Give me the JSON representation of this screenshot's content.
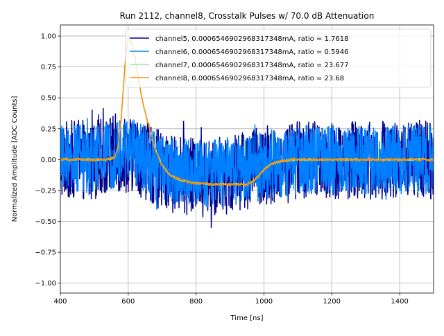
{
  "chart_data": {
    "type": "line",
    "title": "Run 2112, channel8, Crosstalk Pulses w/ 70.0 dB Attenuation",
    "xlabel": "Time [ns]",
    "ylabel": "Normalized Amplitude [ADC Counts]",
    "xlim": [
      400,
      1500
    ],
    "ylim": [
      -1.08,
      1.09
    ],
    "xticks": [
      400,
      600,
      800,
      1000,
      1200,
      1400
    ],
    "xtick_labels": [
      "400",
      "600",
      "800",
      "1000",
      "1200",
      "1400"
    ],
    "yticks": [
      -1.0,
      -0.75,
      -0.5,
      -0.25,
      0.0,
      0.25,
      0.5,
      0.75,
      1.0
    ],
    "ytick_labels": [
      "−1.00",
      "−0.75",
      "−0.50",
      "−0.25",
      "0.00",
      "0.25",
      "0.50",
      "0.75",
      "1.00"
    ],
    "grid": true,
    "legend_position": "top-right",
    "series": [
      {
        "name": "channel5, 0.0006546902968317348mA, ratio = 1.7618",
        "color": "#00008b",
        "kind": "noise",
        "noise_amplitude": 0.32,
        "x": [
          400,
          500,
          560,
          600,
          650,
          700,
          800,
          900,
          1000,
          1100,
          1200,
          1300,
          1400,
          1500
        ],
        "values": [
          0.0,
          0.0,
          0.05,
          0.05,
          0.0,
          -0.1,
          -0.15,
          -0.12,
          -0.05,
          0.0,
          0.0,
          0.0,
          0.0,
          0.0
        ]
      },
      {
        "name": "channel6, 0.0006546902968317348mA, ratio = 0.5946",
        "color": "#0080ff",
        "kind": "noise",
        "noise_amplitude": 0.28,
        "x": [
          400,
          500,
          560,
          600,
          650,
          700,
          800,
          900,
          1000,
          1100,
          1200,
          1300,
          1400,
          1500
        ],
        "values": [
          0.0,
          0.0,
          0.05,
          0.08,
          0.02,
          -0.08,
          -0.12,
          -0.1,
          -0.05,
          0.0,
          0.0,
          0.0,
          0.0,
          0.0
        ]
      },
      {
        "name": "channel7, 0.0006546902968317348mA, ratio = 23.677",
        "color": "#90ee90",
        "kind": "smooth",
        "noise_amplitude": 0.015,
        "x": [
          400,
          450,
          500,
          540,
          560,
          570,
          580,
          590,
          600,
          610,
          620,
          630,
          640,
          650,
          660,
          670,
          680,
          700,
          720,
          740,
          760,
          780,
          800,
          850,
          900,
          950,
          980,
          1000,
          1020,
          1050,
          1100,
          1200,
          1300,
          1400,
          1500
        ],
        "values": [
          0.0,
          0.0,
          0.0,
          0.0,
          0.02,
          0.1,
          0.35,
          0.75,
          0.98,
          0.93,
          0.8,
          0.65,
          0.5,
          0.38,
          0.28,
          0.18,
          0.08,
          -0.05,
          -0.12,
          -0.15,
          -0.17,
          -0.18,
          -0.19,
          -0.2,
          -0.2,
          -0.2,
          -0.15,
          -0.08,
          -0.04,
          -0.01,
          0.0,
          0.0,
          0.0,
          0.0,
          0.0
        ]
      },
      {
        "name": "channel8, 0.0006546902968317348mA, ratio = 23.68",
        "color": "#ff8c00",
        "kind": "smooth",
        "noise_amplitude": 0.02,
        "x": [
          400,
          450,
          500,
          540,
          560,
          570,
          580,
          590,
          600,
          610,
          620,
          630,
          640,
          650,
          660,
          670,
          680,
          700,
          720,
          740,
          760,
          780,
          800,
          850,
          900,
          950,
          980,
          1000,
          1020,
          1050,
          1100,
          1200,
          1300,
          1400,
          1500
        ],
        "values": [
          0.0,
          0.0,
          0.0,
          0.0,
          0.02,
          0.1,
          0.35,
          0.75,
          1.0,
          0.95,
          0.82,
          0.66,
          0.5,
          0.38,
          0.28,
          0.18,
          0.08,
          -0.05,
          -0.12,
          -0.15,
          -0.17,
          -0.18,
          -0.19,
          -0.2,
          -0.2,
          -0.2,
          -0.15,
          -0.08,
          -0.04,
          -0.01,
          0.0,
          0.0,
          0.0,
          0.0,
          0.0
        ]
      }
    ]
  }
}
